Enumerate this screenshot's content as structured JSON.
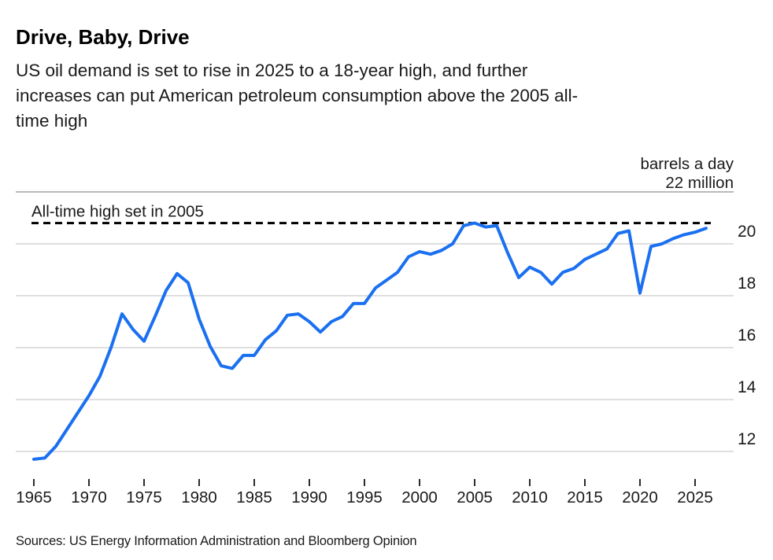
{
  "header": {
    "title": "Drive, Baby, Drive",
    "subtitle_lines": [
      "US oil demand is set to rise in 2025 to a 18-year high, and further",
      "increases can put American petroleum consumption above the 2005 all-",
      "time high"
    ]
  },
  "footer": {
    "sources": "Sources: US Energy Information Administration and Bloomberg Opinion"
  },
  "colors": {
    "line": "#1a70f0",
    "top_rule": "#a3a3a3",
    "gridline": "#cccccc",
    "dashed_line": "#000000",
    "tick": "#2b2b2b",
    "text": "#1a1a1a"
  },
  "chart_data": {
    "type": "line",
    "title": "Drive, Baby, Drive",
    "unit_labels": [
      "barrels a day",
      "22 million"
    ],
    "ylabel": "barrels a day, million",
    "xlabel": "",
    "ylim": [
      11,
      22
    ],
    "xlim": [
      1963.4,
      2028.6
    ],
    "grid": "horizontal",
    "legend_position": "none",
    "gridline_values": [
      22,
      20,
      18,
      16,
      14,
      12
    ],
    "y_tick_labels": [
      20,
      18,
      16,
      14,
      12
    ],
    "x_tick_labels": [
      1965,
      1970,
      1975,
      1980,
      1985,
      1990,
      1995,
      2000,
      2005,
      2010,
      2015,
      2020,
      2025
    ],
    "annotation": {
      "label": "All-time high set in 2005",
      "value": 20.8,
      "style": "dashed-horizontal-line"
    },
    "series": [
      {
        "name": "US oil demand (million barrels a day)",
        "x": [
          1965,
          1966,
          1967,
          1968,
          1969,
          1970,
          1971,
          1972,
          1973,
          1974,
          1975,
          1976,
          1977,
          1978,
          1979,
          1980,
          1981,
          1982,
          1983,
          1984,
          1985,
          1986,
          1987,
          1988,
          1989,
          1990,
          1991,
          1992,
          1993,
          1994,
          1995,
          1996,
          1997,
          1998,
          1999,
          2000,
          2001,
          2002,
          2003,
          2004,
          2005,
          2006,
          2007,
          2008,
          2009,
          2010,
          2011,
          2012,
          2013,
          2014,
          2015,
          2016,
          2017,
          2018,
          2019,
          2020,
          2021,
          2022,
          2023,
          2024,
          2025,
          2026
        ],
        "values": [
          11.7,
          11.75,
          12.2,
          12.85,
          13.5,
          14.15,
          14.9,
          16.0,
          17.3,
          16.7,
          16.25,
          17.2,
          18.2,
          18.85,
          18.5,
          17.1,
          16.05,
          15.3,
          15.2,
          15.7,
          15.7,
          16.3,
          16.65,
          17.25,
          17.3,
          17.0,
          16.6,
          17.0,
          17.2,
          17.7,
          17.7,
          18.3,
          18.6,
          18.9,
          19.5,
          19.7,
          19.6,
          19.75,
          20.0,
          20.7,
          20.8,
          20.65,
          20.7,
          19.65,
          18.7,
          19.1,
          18.9,
          18.45,
          18.9,
          19.05,
          19.4,
          19.6,
          19.8,
          20.4,
          20.5,
          18.1,
          19.9,
          20.0,
          20.2,
          20.35,
          20.45,
          20.6
        ]
      }
    ]
  }
}
